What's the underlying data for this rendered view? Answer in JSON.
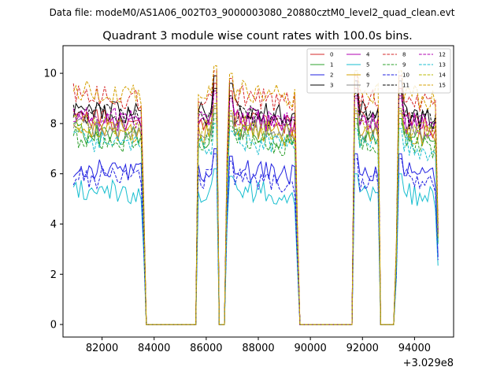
{
  "suptitle": "Data file: modeM0/AS1A06_002T03_9000003080_20880cztM0_level2_quad_clean.evt",
  "chart_data": {
    "type": "line",
    "title": "Quadrant 3 module wise count rates with 100.0s bins.",
    "xlabel": "",
    "ylabel": "",
    "x_offset_label": "+3.029e8",
    "xlim": [
      80500,
      95500
    ],
    "ylim": [
      -0.5,
      11.1
    ],
    "xticks": [
      82000,
      84000,
      86000,
      88000,
      90000,
      92000,
      94000
    ],
    "xtick_labels": [
      "82000",
      "84000",
      "86000",
      "88000",
      "90000",
      "92000",
      "94000"
    ],
    "yticks": [
      0,
      2,
      4,
      6,
      8,
      10
    ],
    "ytick_labels": [
      "0",
      "2",
      "4",
      "6",
      "8",
      "10"
    ],
    "x_start": 80900,
    "x_step": 100,
    "count_in_each_segment": [
      27,
      21,
      8,
      3,
      1,
      8,
      21,
      20,
      3,
      2,
      1,
      6,
      21
    ],
    "segments": [
      {
        "x_start": 80900,
        "x_end": 83500,
        "state": "on"
      },
      {
        "x_start": 83600,
        "x_end": 83600,
        "state": "edge"
      },
      {
        "x_start": 83700,
        "x_end": 85600,
        "state": "off"
      },
      {
        "x_start": 85700,
        "x_end": 86400,
        "state": "on"
      },
      {
        "x_start": 86500,
        "x_end": 86700,
        "state": "off"
      },
      {
        "x_start": 86800,
        "x_end": 86800,
        "state": "edge"
      },
      {
        "x_start": 86900,
        "x_end": 89400,
        "state": "on"
      },
      {
        "x_start": 89500,
        "x_end": 89500,
        "state": "edge"
      },
      {
        "x_start": 89600,
        "x_end": 91600,
        "state": "off"
      },
      {
        "x_start": 91700,
        "x_end": 92600,
        "state": "on"
      },
      {
        "x_start": 92700,
        "x_end": 93200,
        "state": "off"
      },
      {
        "x_start": 93300,
        "x_end": 93300,
        "state": "edge"
      },
      {
        "x_start": 93400,
        "x_end": 94900,
        "state": "on"
      }
    ],
    "series": [
      {
        "name": "0",
        "color": "#d62728",
        "dash": "solid",
        "level": 8.0,
        "spike": 9.6
      },
      {
        "name": "1",
        "color": "#2ca02c",
        "dash": "solid",
        "level": 7.4,
        "spike": 8.4
      },
      {
        "name": "2",
        "color": "#1f1fe0",
        "dash": "solid",
        "level": 6.0,
        "spike": 7.0
      },
      {
        "name": "3",
        "color": "#000000",
        "dash": "solid",
        "level": 8.4,
        "spike": 9.9
      },
      {
        "name": "4",
        "color": "#b000b0",
        "dash": "solid",
        "level": 8.0,
        "spike": 9.3
      },
      {
        "name": "5",
        "color": "#17becf",
        "dash": "solid",
        "level": 5.2,
        "spike": 6.2
      },
      {
        "name": "6",
        "color": "#d4a000",
        "dash": "solid",
        "level": 7.6,
        "spike": 8.6
      },
      {
        "name": "7",
        "color": "#888888",
        "dash": "solid",
        "level": 7.7,
        "spike": 8.7
      },
      {
        "name": "8",
        "color": "#d62728",
        "dash": "dashed",
        "level": 8.9,
        "spike": 10.1
      },
      {
        "name": "9",
        "color": "#2ca02c",
        "dash": "dashed",
        "level": 7.2,
        "spike": 8.2
      },
      {
        "name": "10",
        "color": "#1f1fe0",
        "dash": "dashed",
        "level": 5.7,
        "spike": 6.8
      },
      {
        "name": "11",
        "color": "#000000",
        "dash": "dashed",
        "level": 8.2,
        "spike": 9.4
      },
      {
        "name": "12",
        "color": "#b000b0",
        "dash": "dashed",
        "level": 8.1,
        "spike": 9.2
      },
      {
        "name": "13",
        "color": "#17becf",
        "dash": "dashed",
        "level": 7.1,
        "spike": 8.0
      },
      {
        "name": "14",
        "color": "#b8b800",
        "dash": "dashed",
        "level": 7.7,
        "spike": 8.8
      },
      {
        "name": "15",
        "color": "#d4a000",
        "dash": "dashed",
        "level": 9.1,
        "spike": 10.3
      }
    ],
    "legend": {
      "placement": "top-right",
      "columns": 4
    },
    "grid": false
  }
}
